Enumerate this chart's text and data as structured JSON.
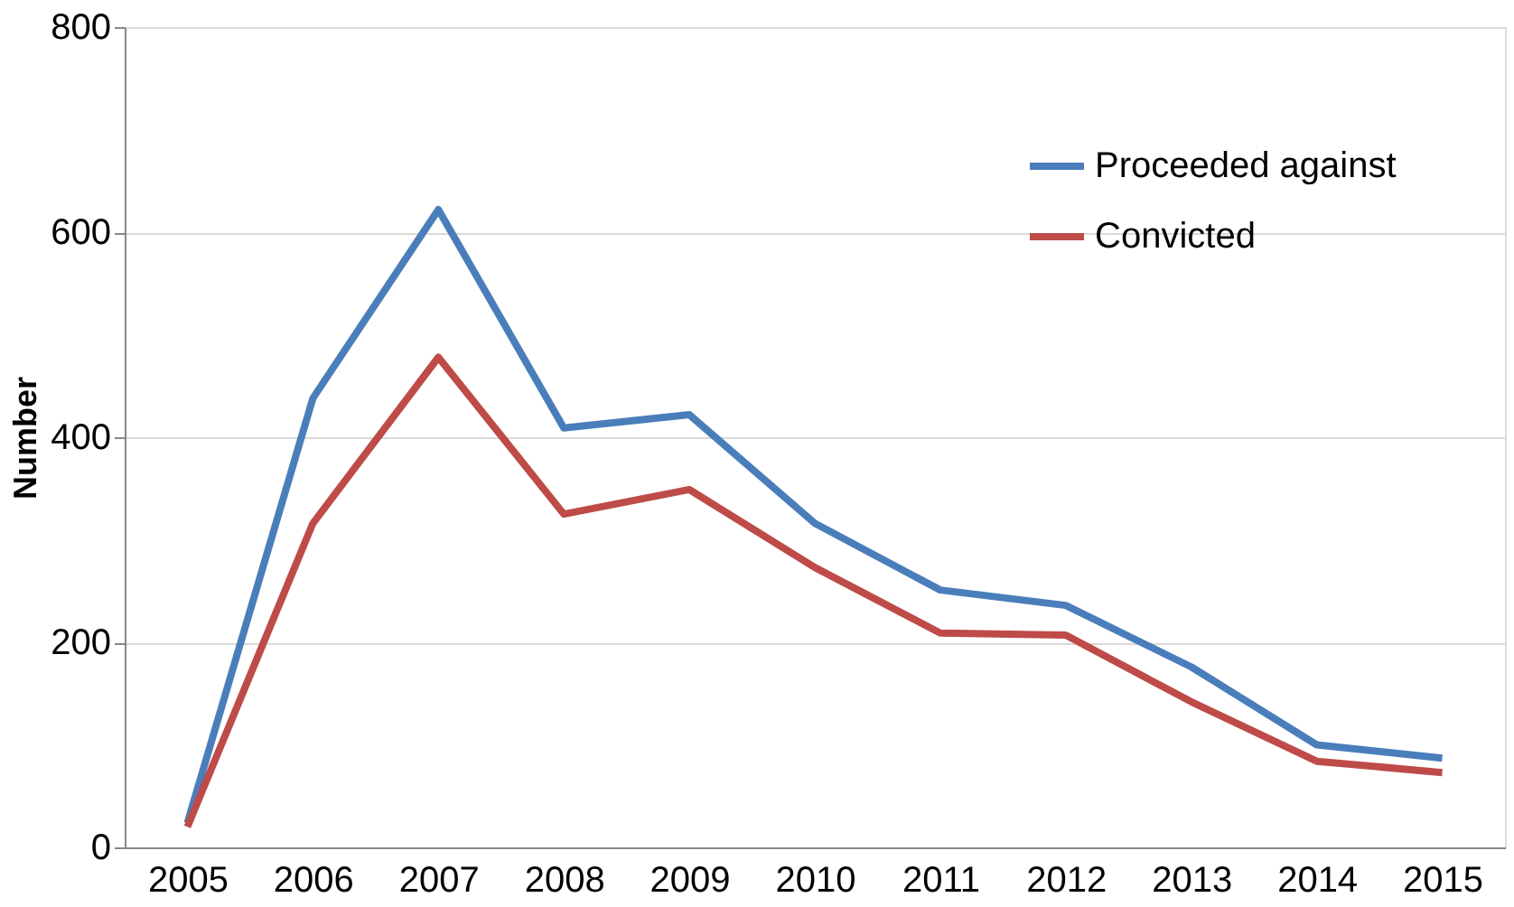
{
  "chart_data": {
    "type": "line",
    "ylabel": "Number",
    "categories": [
      "2005",
      "2006",
      "2007",
      "2008",
      "2009",
      "2010",
      "2011",
      "2012",
      "2013",
      "2014",
      "2015"
    ],
    "series": [
      {
        "name": "Proceeded against",
        "color": "#4a7ebb",
        "values": [
          24,
          438,
          622,
          409,
          422,
          316,
          251,
          236,
          176,
          100,
          87
        ]
      },
      {
        "name": "Convicted",
        "color": "#be4b48",
        "values": [
          20,
          316,
          478,
          325,
          349,
          273,
          209,
          207,
          142,
          84,
          73
        ]
      }
    ],
    "ylim": [
      0,
      800
    ],
    "yticks": [
      0,
      200,
      400,
      600,
      800
    ],
    "grid": "y",
    "legend": "top right",
    "marker": "none",
    "line_style": "solid"
  }
}
